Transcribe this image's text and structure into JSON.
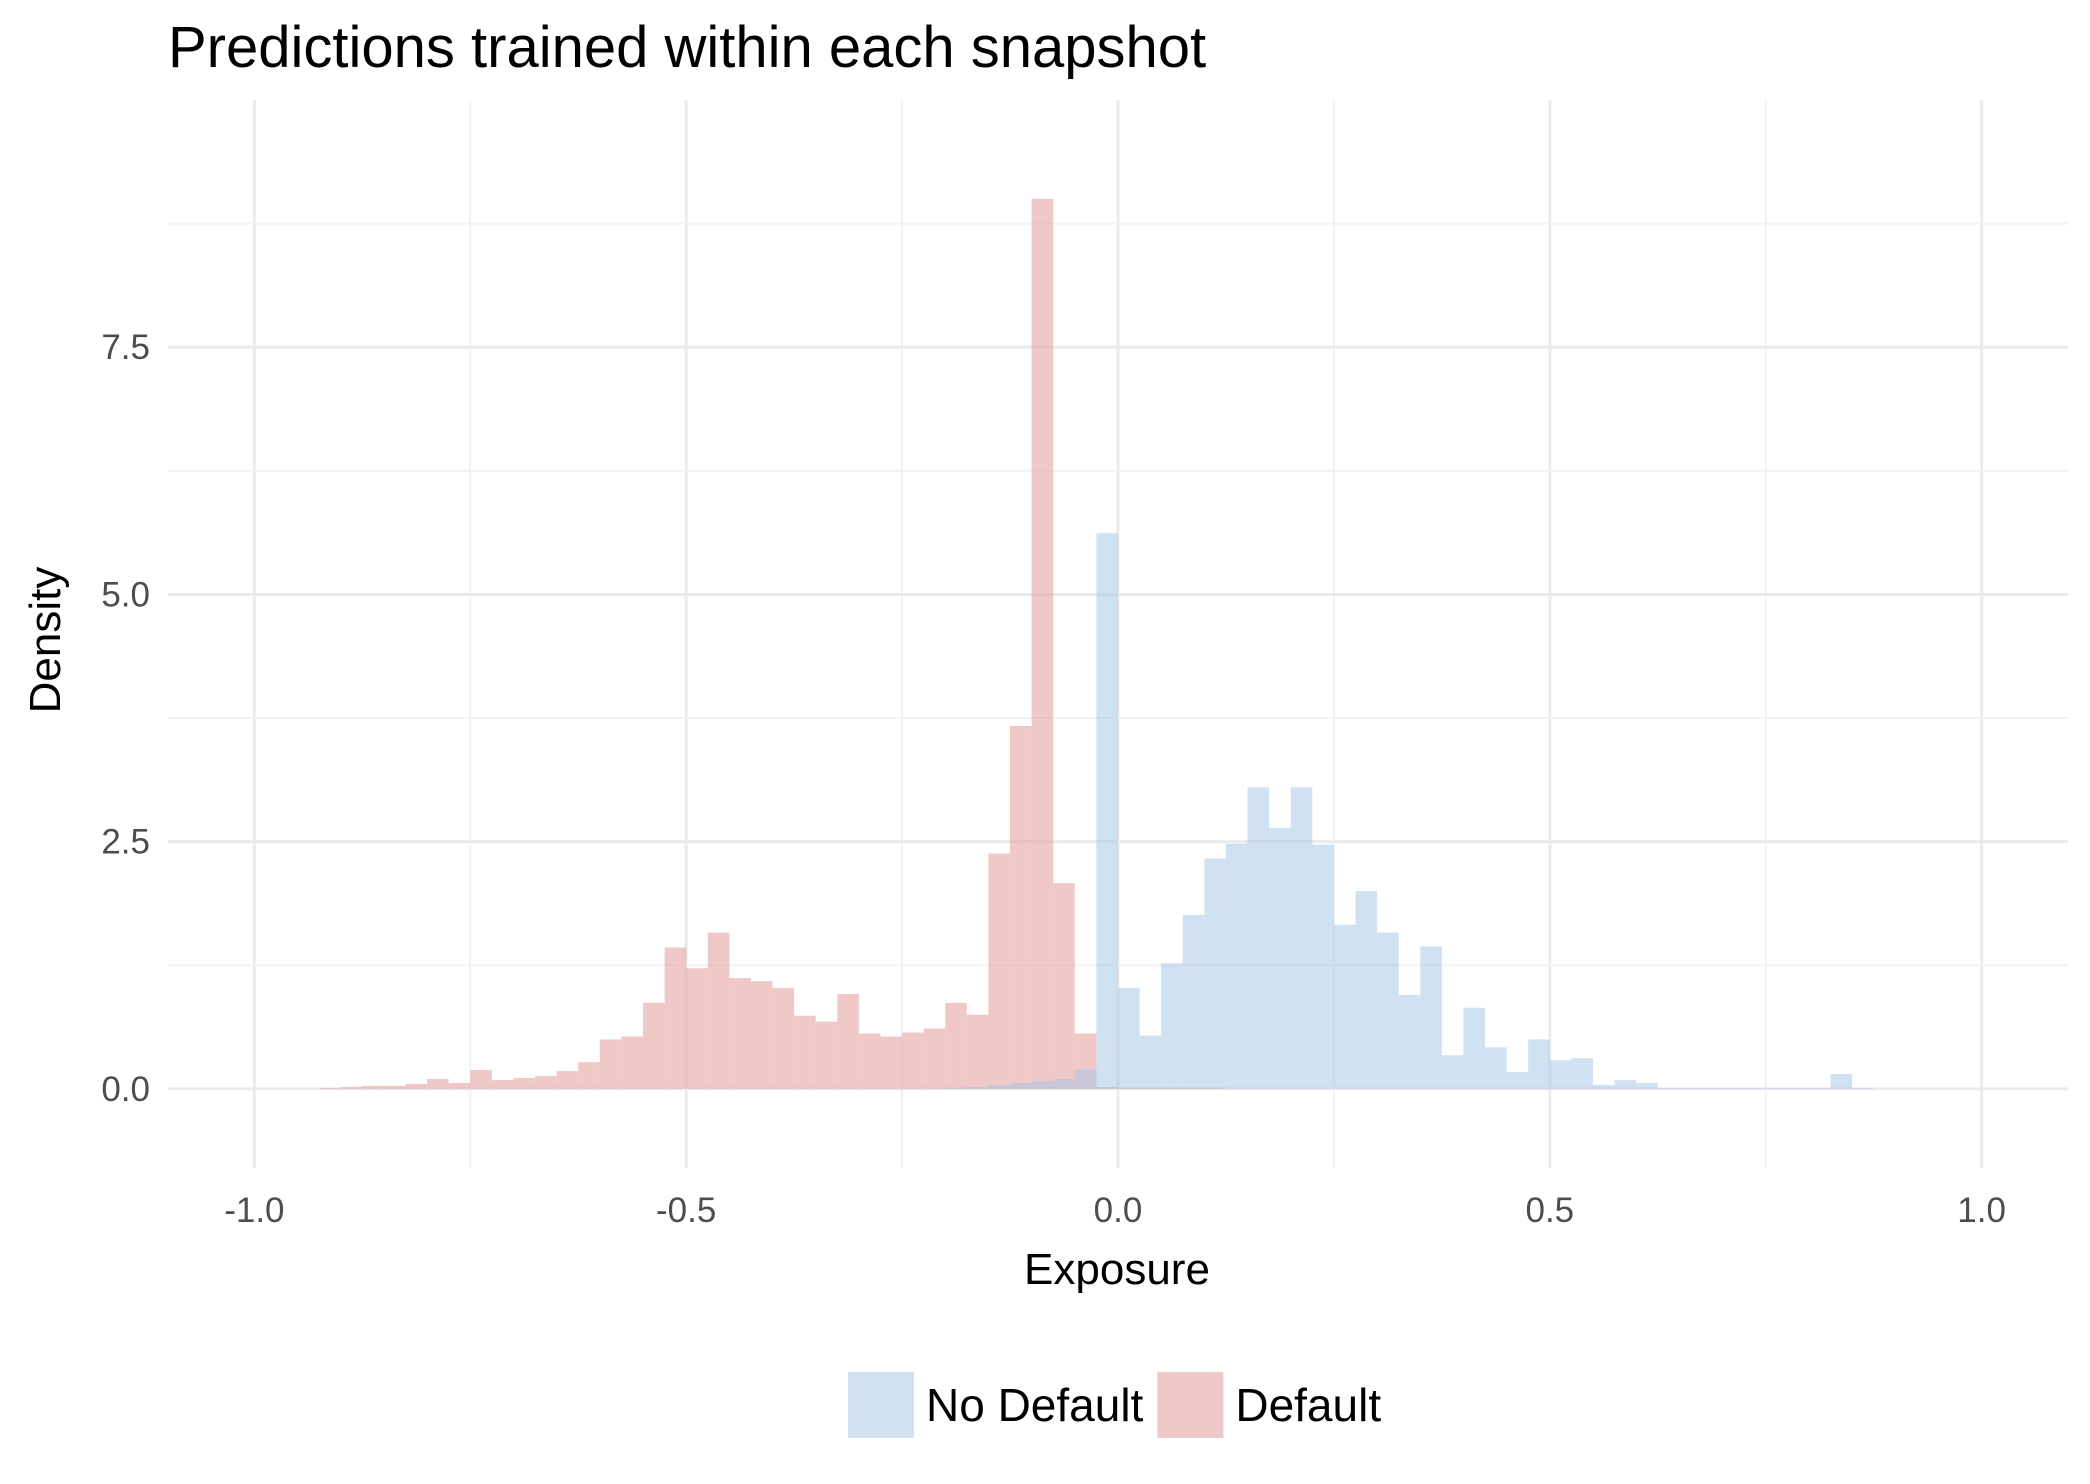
{
  "chart_data": {
    "type": "histogram",
    "title": "Predictions trained within each snapshot",
    "xlabel": "Exposure",
    "ylabel": "Density",
    "xlim": [
      -1.1,
      1.1
    ],
    "ylim": [
      -0.8,
      10.0
    ],
    "x_ticks": [
      -1.0,
      -0.5,
      0.0,
      0.5,
      1.0
    ],
    "x_tick_labels": [
      "-1.0",
      "-0.5",
      "0.0",
      "0.5",
      "1.0"
    ],
    "y_ticks": [
      0.0,
      2.5,
      5.0,
      7.5
    ],
    "y_tick_labels": [
      "0.0",
      "2.5",
      "5.0",
      "7.5"
    ],
    "grid": true,
    "legend_position": "bottom",
    "bin_width": 0.025,
    "series": [
      {
        "name": "Default",
        "color": "#e8a6a6",
        "opacity": 0.62,
        "bins": [
          [
            -0.925,
            0.01
          ],
          [
            -0.9,
            0.02
          ],
          [
            -0.875,
            0.03
          ],
          [
            -0.85,
            0.03
          ],
          [
            -0.825,
            0.05
          ],
          [
            -0.8,
            0.1
          ],
          [
            -0.775,
            0.06
          ],
          [
            -0.75,
            0.19
          ],
          [
            -0.725,
            0.09
          ],
          [
            -0.7,
            0.11
          ],
          [
            -0.675,
            0.13
          ],
          [
            -0.65,
            0.18
          ],
          [
            -0.625,
            0.27
          ],
          [
            -0.6,
            0.5
          ],
          [
            -0.575,
            0.53
          ],
          [
            -0.55,
            0.87
          ],
          [
            -0.525,
            1.43
          ],
          [
            -0.5,
            1.22
          ],
          [
            -0.475,
            1.58
          ],
          [
            -0.45,
            1.12
          ],
          [
            -0.425,
            1.09
          ],
          [
            -0.4,
            1.02
          ],
          [
            -0.375,
            0.74
          ],
          [
            -0.35,
            0.68
          ],
          [
            -0.325,
            0.96
          ],
          [
            -0.3,
            0.56
          ],
          [
            -0.275,
            0.53
          ],
          [
            -0.25,
            0.57
          ],
          [
            -0.225,
            0.61
          ],
          [
            -0.2,
            0.87
          ],
          [
            -0.175,
            0.75
          ],
          [
            -0.15,
            2.38
          ],
          [
            -0.125,
            3.67
          ],
          [
            -0.1,
            9.0
          ],
          [
            -0.075,
            2.08
          ],
          [
            -0.05,
            0.56
          ],
          [
            -0.025,
            0.02
          ],
          [
            0.0,
            0.01
          ],
          [
            0.025,
            0.01
          ],
          [
            0.05,
            0.01
          ],
          [
            0.075,
            0.01
          ],
          [
            0.1,
            0.01
          ]
        ]
      },
      {
        "name": "No Default",
        "color": "#a9c8e6",
        "opacity": 0.55,
        "bins": [
          [
            -0.2,
            0.01
          ],
          [
            -0.175,
            0.02
          ],
          [
            -0.15,
            0.04
          ],
          [
            -0.125,
            0.06
          ],
          [
            -0.1,
            0.08
          ],
          [
            -0.075,
            0.1
          ],
          [
            -0.05,
            0.2
          ],
          [
            -0.025,
            5.62
          ],
          [
            0.0,
            1.02
          ],
          [
            0.025,
            0.54
          ],
          [
            0.05,
            1.27
          ],
          [
            0.075,
            1.76
          ],
          [
            0.1,
            2.33
          ],
          [
            0.125,
            2.48
          ],
          [
            0.15,
            3.05
          ],
          [
            0.175,
            2.64
          ],
          [
            0.2,
            3.05
          ],
          [
            0.225,
            2.47
          ],
          [
            0.25,
            1.66
          ],
          [
            0.275,
            2.0
          ],
          [
            0.3,
            1.58
          ],
          [
            0.325,
            0.95
          ],
          [
            0.35,
            1.44
          ],
          [
            0.375,
            0.34
          ],
          [
            0.4,
            0.82
          ],
          [
            0.425,
            0.42
          ],
          [
            0.45,
            0.17
          ],
          [
            0.475,
            0.5
          ],
          [
            0.5,
            0.29
          ],
          [
            0.525,
            0.31
          ],
          [
            0.55,
            0.04
          ],
          [
            0.575,
            0.09
          ],
          [
            0.6,
            0.06
          ],
          [
            0.625,
            0.01
          ],
          [
            0.65,
            0.01
          ],
          [
            0.675,
            0.01
          ],
          [
            0.7,
            0.01
          ],
          [
            0.725,
            0.01
          ],
          [
            0.75,
            0.01
          ],
          [
            0.775,
            0.01
          ],
          [
            0.8,
            0.01
          ],
          [
            0.825,
            0.15
          ],
          [
            0.85,
            0.01
          ]
        ]
      }
    ],
    "legend_order": [
      "No Default",
      "Default"
    ]
  }
}
